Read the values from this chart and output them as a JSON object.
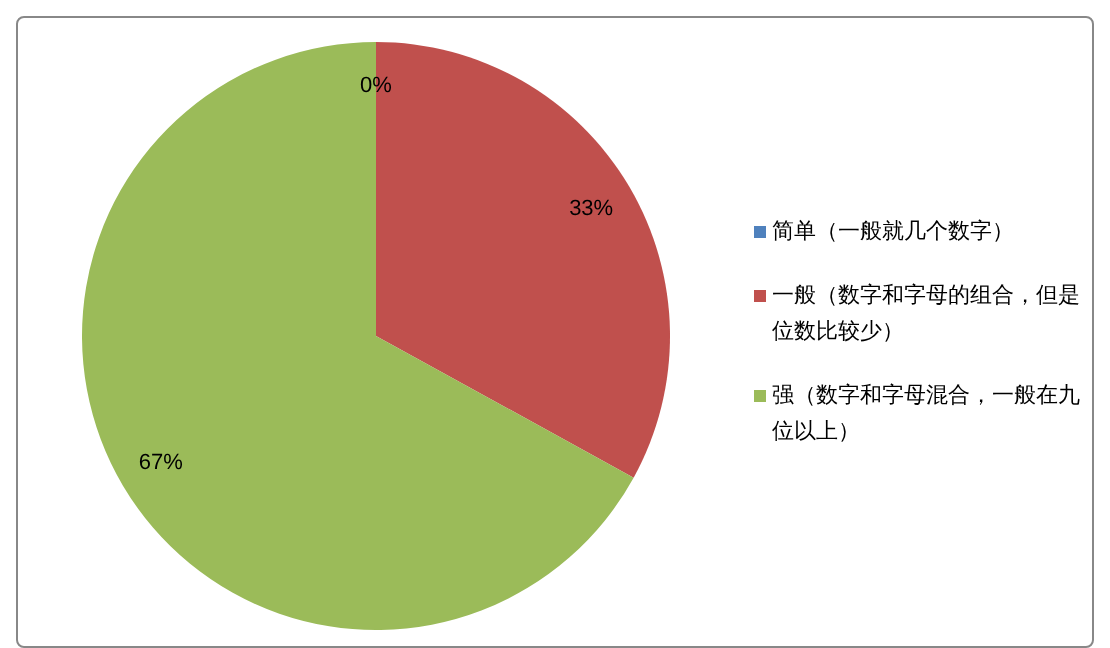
{
  "chart_data": {
    "type": "pie",
    "categories": [
      "简单（一般就几个数字）",
      "一般（数字和字母的组合，但是位数比较少）",
      "强（数字和字母混合，一般在九位以上）"
    ],
    "values": [
      0,
      33,
      67
    ],
    "colors": [
      "#4f81bd",
      "#c0504d",
      "#9bbb59"
    ],
    "value_labels": [
      "0%",
      "33%",
      "67%"
    ],
    "legend": "right"
  }
}
